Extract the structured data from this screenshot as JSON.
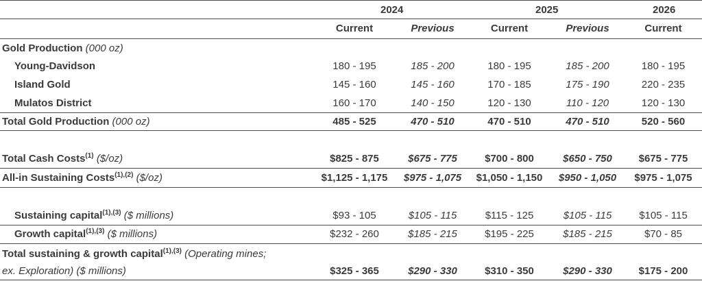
{
  "header": {
    "years": [
      "2024",
      "2025",
      "2026"
    ],
    "subheaders": [
      "Current",
      "Previous",
      "Current",
      "Previous",
      "Current"
    ]
  },
  "rows": [
    {
      "label": "Gold Production",
      "unit": "(000 oz)",
      "values": []
    },
    {
      "label": "Young-Davidson",
      "values": [
        "180 - 195",
        "185 - 200",
        "180 - 195",
        "185 - 200",
        "180 - 195"
      ]
    },
    {
      "label": "Island Gold",
      "values": [
        "145 - 160",
        "145 - 160",
        "170 - 185",
        "175 - 190",
        "220 - 235"
      ]
    },
    {
      "label": "Mulatos District",
      "values": [
        "160 - 170",
        "140 - 150",
        "120 - 130",
        "110 - 120",
        "120 - 130"
      ]
    },
    {
      "label": "Total Gold Production",
      "unit": "(000 oz)",
      "values": [
        "485 - 525",
        "470 - 510",
        "470 - 510",
        "470 - 510",
        "520 - 560"
      ]
    },
    {
      "label": "Total Cash Costs",
      "sup": "(1)",
      "unit": "($/oz)",
      "values": [
        "$825 - 875",
        "$675 - 775",
        "$700 - 800",
        "$650 - 750",
        "$675 - 775"
      ]
    },
    {
      "label": "All-in Sustaining Costs",
      "sup": "(1),(2)",
      "unit": "($/oz)",
      "values": [
        "$1,125 - 1,175",
        "$975 - 1,075",
        "$1,050 - 1,150",
        "$950 - 1,050",
        "$975 - 1,075"
      ]
    },
    {
      "label": "Sustaining capital",
      "sup": "(1),(3)",
      "unit": "($ millions)",
      "values": [
        "$93 - 105",
        "$105 - 115",
        "$115 - 125",
        "$105 - 115",
        "$105 - 115"
      ]
    },
    {
      "label": "Growth capital",
      "sup": "(1),(3)",
      "unit": "($ millions)",
      "values": [
        "$232 - 260",
        "$185 - 215",
        "$195 - 225",
        "$185 - 215",
        "$70 - 85"
      ]
    },
    {
      "label": "Total sustaining & growth capital",
      "sup": "(1),(3)",
      "unit": "(Operating mines;",
      "unit2": "ex. Exploration) ($ millions)",
      "values": [
        "$325 - 365",
        "$290 - 330",
        "$310 - 350",
        "$290 - 330",
        "$175 - 200"
      ]
    }
  ]
}
